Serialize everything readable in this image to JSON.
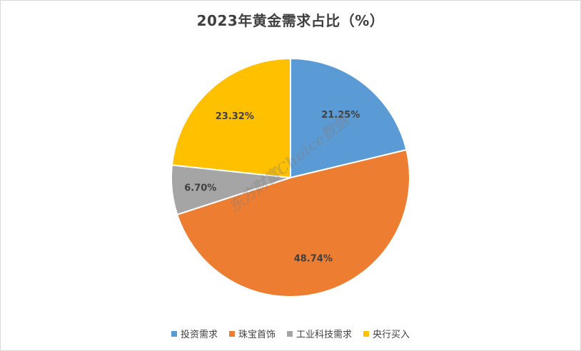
{
  "chart_data": {
    "type": "pie",
    "title": "2023年黄金需求占比（%）",
    "categories": [
      "投资需求",
      "珠宝首饰",
      "工业科技需求",
      "央行买入"
    ],
    "values": [
      21.25,
      48.74,
      6.7,
      23.32
    ],
    "labels": [
      "21.25%",
      "48.74%",
      "6.70%",
      "23.32%"
    ],
    "colors": [
      "#5b9bd5",
      "#ed7d31",
      "#a5a5a5",
      "#ffc000"
    ],
    "legend_position": "bottom",
    "start_angle": "12 o'clock",
    "direction": "clockwise"
  },
  "watermark": "东方财富Choice数据"
}
